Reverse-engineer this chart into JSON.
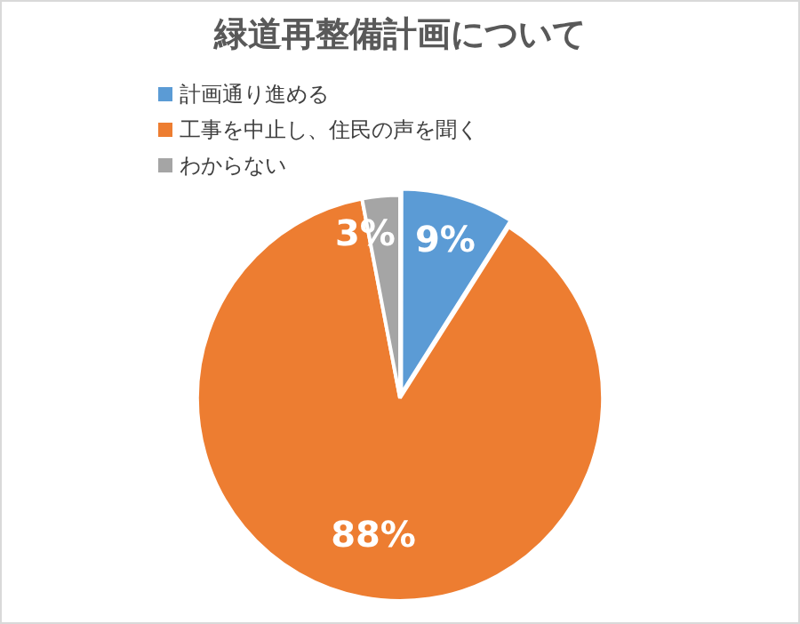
{
  "chart_data": {
    "type": "pie",
    "title": "緑道再整備計画について",
    "categories": [
      "計画通り進める",
      "工事を中止し、住民の声を聞く",
      "わからない"
    ],
    "values": [
      9,
      88,
      3
    ],
    "colors": [
      "#5b9bd5",
      "#ed7d31",
      "#a5a5a5"
    ],
    "value_labels": [
      "9%",
      "88%",
      "3%"
    ],
    "legend": "top left"
  }
}
